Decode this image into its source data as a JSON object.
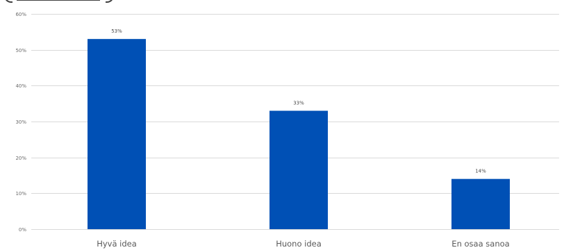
{
  "chart_data": {
    "type": "bar",
    "categories": [
      "Hyvä idea",
      "Huono idea",
      "En osaa sanoa"
    ],
    "values": [
      53,
      33,
      14
    ],
    "data_labels": [
      "53%",
      "33%",
      "14%"
    ],
    "yticks": [
      0,
      10,
      20,
      30,
      40,
      50,
      60
    ],
    "ytick_labels": [
      "0%",
      "10%",
      "20%",
      "30%",
      "40%",
      "50%",
      "60%"
    ],
    "ylim": [
      0,
      60
    ],
    "grid": true,
    "bar_color": "#0050b5",
    "xlabel": "",
    "ylabel": ""
  }
}
